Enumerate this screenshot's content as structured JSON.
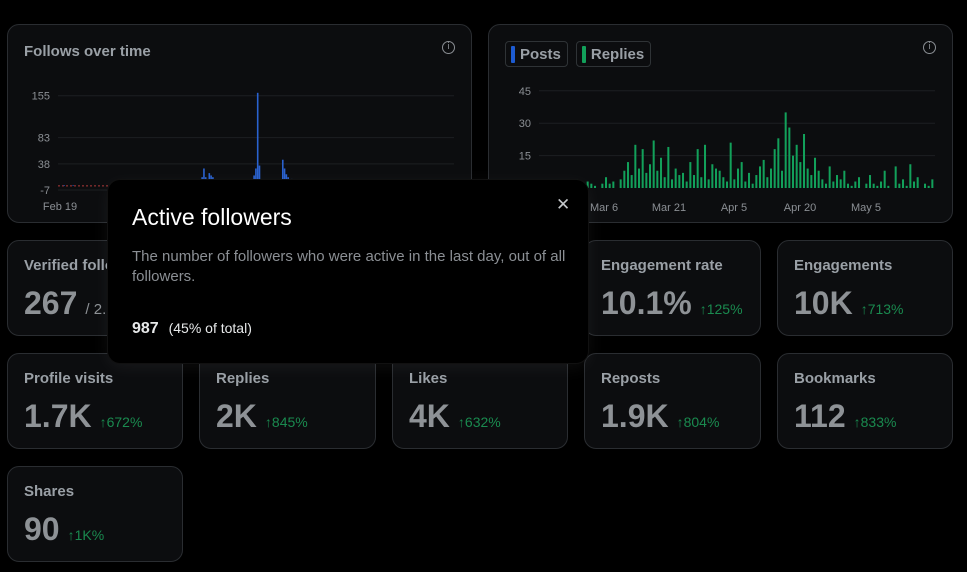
{
  "follows_chart": {
    "title": "Follows over time",
    "info_icon": "info-icon",
    "y_ticks": [
      "155",
      "83",
      "38",
      "-7"
    ],
    "x_ticks": [
      "Feb 19"
    ]
  },
  "activity_chart": {
    "legend": [
      {
        "label": "Posts",
        "color": "#1d5bd1"
      },
      {
        "label": "Replies",
        "color": "#12a05a"
      }
    ],
    "info_icon": "info-icon",
    "y_ticks": [
      "45",
      "30",
      "15"
    ],
    "x_ticks": [
      "Mar 6",
      "Mar 21",
      "Apr 5",
      "Apr 20",
      "May 5"
    ]
  },
  "chart_data": [
    {
      "type": "bar",
      "title": "Follows over time",
      "ylim": [
        -7,
        170
      ],
      "series": [
        {
          "values": [
            0,
            0,
            0,
            1,
            0,
            0,
            0,
            0,
            1,
            0,
            0,
            0,
            0,
            0,
            0,
            0,
            0,
            0,
            0,
            0,
            0,
            0,
            0,
            0,
            0,
            0,
            0,
            0,
            0,
            0,
            0,
            0,
            0,
            0,
            0,
            0,
            0,
            0,
            0,
            0,
            0,
            0,
            0,
            0,
            0,
            0,
            0,
            0,
            0,
            0,
            0,
            0,
            0,
            0,
            0,
            0,
            0,
            0,
            0,
            0,
            0,
            0,
            0,
            0,
            0,
            0,
            0,
            0,
            0,
            0,
            0,
            0,
            0,
            0,
            0,
            0,
            0,
            0,
            0,
            5,
            15,
            30,
            15,
            12,
            22,
            18,
            15,
            10,
            5,
            0,
            0,
            0,
            0,
            0,
            0,
            0,
            0,
            0,
            0,
            0,
            0,
            2,
            8,
            3,
            0,
            0,
            0,
            0,
            0,
            18,
            30,
            160,
            35,
            5,
            0,
            0,
            0,
            0,
            0,
            0,
            0,
            0,
            0,
            0,
            0,
            45,
            30,
            20,
            15,
            8,
            12,
            5,
            0,
            0,
            0,
            0,
            0,
            0,
            0,
            0,
            5,
            0,
            0,
            0,
            0,
            0,
            0,
            0,
            0,
            0,
            0,
            0,
            0,
            0,
            0,
            0,
            0,
            0,
            0,
            0,
            0,
            0,
            0,
            0,
            0,
            0,
            0,
            0,
            0,
            0,
            0,
            0,
            5,
            3,
            0,
            0,
            0,
            0,
            0,
            0,
            0,
            0,
            0,
            0,
            0,
            0,
            0,
            0,
            0,
            0,
            0,
            0,
            0,
            0,
            0,
            0,
            0,
            0,
            0,
            0,
            0,
            0,
            0,
            0,
            0,
            0,
            0,
            0,
            0,
            0,
            0,
            0,
            0,
            0,
            0,
            0,
            0,
            0,
            0,
            0,
            0
          ]
        }
      ]
    },
    {
      "type": "bar",
      "ylim": [
        0,
        50
      ],
      "series": [
        {
          "name": "Posts",
          "values": [
            1,
            0,
            0,
            0,
            1,
            0,
            0,
            0,
            0,
            1,
            0,
            0,
            0,
            0,
            0,
            0,
            0,
            0,
            0,
            0,
            0,
            0,
            0,
            0,
            0,
            0,
            0,
            0,
            0,
            0,
            0,
            0,
            0,
            0,
            0,
            0,
            0,
            0,
            0,
            0,
            0,
            0,
            0,
            0,
            0,
            0,
            0,
            0,
            0,
            0,
            0,
            0,
            0,
            0,
            0,
            0,
            0,
            0,
            0,
            0,
            0,
            0,
            0,
            0,
            0,
            0,
            0,
            0,
            0,
            0,
            0,
            0,
            0,
            0,
            0,
            0,
            0,
            0,
            0,
            0,
            0,
            0,
            0,
            0,
            0,
            0,
            0,
            0,
            0,
            0,
            0,
            0,
            0,
            0,
            0,
            0,
            0,
            0,
            0,
            0,
            0,
            0,
            0,
            0,
            0,
            0,
            0,
            0,
            0,
            0,
            0,
            0,
            0,
            0,
            0,
            0,
            0,
            0,
            0,
            0,
            0
          ]
        },
        {
          "name": "Replies",
          "values": [
            0,
            1,
            0,
            2,
            1,
            0,
            3,
            1,
            0,
            2,
            4,
            1,
            0,
            3,
            2,
            1,
            0,
            2,
            5,
            2,
            3,
            0,
            4,
            8,
            12,
            6,
            20,
            9,
            18,
            7,
            11,
            22,
            8,
            14,
            5,
            19,
            4,
            9,
            6,
            7,
            3,
            12,
            6,
            18,
            5,
            20,
            4,
            11,
            9,
            8,
            5,
            3,
            21,
            4,
            9,
            12,
            3,
            7,
            2,
            6,
            10,
            13,
            5,
            9,
            18,
            23,
            8,
            35,
            28,
            15,
            20,
            12,
            25,
            9,
            6,
            14,
            8,
            4,
            2,
            10,
            3,
            6,
            4,
            8,
            2,
            1,
            3,
            5,
            0,
            2,
            6,
            2,
            1,
            3,
            8,
            1,
            0,
            10,
            2,
            4,
            1,
            11,
            3,
            5,
            0,
            2,
            1,
            4
          ]
        }
      ]
    }
  ],
  "stats": [
    {
      "label": "Verified followers",
      "value": "267",
      "sub": "/ 2.",
      "change": ""
    },
    {
      "label": "Engagement rate",
      "value": "10.1%",
      "sub": "",
      "change": "↑125%"
    },
    {
      "label": "Engagements",
      "value": "10K",
      "sub": "",
      "change": "↑713%"
    },
    {
      "label": "Profile visits",
      "value": "1.7K",
      "sub": "",
      "change": "↑672%"
    },
    {
      "label": "Replies",
      "value": "2K",
      "sub": "",
      "change": "↑845%"
    },
    {
      "label": "Likes",
      "value": "4K",
      "sub": "",
      "change": "↑632%"
    },
    {
      "label": "Reposts",
      "value": "1.9K",
      "sub": "",
      "change": "↑804%"
    },
    {
      "label": "Bookmarks",
      "value": "112",
      "sub": "",
      "change": "↑833%"
    },
    {
      "label": "Shares",
      "value": "90",
      "sub": "",
      "change": "↑1K%"
    }
  ],
  "modal": {
    "title": "Active followers",
    "close_icon": "close-icon",
    "description": "The number of followers who were active in the last day, out of all followers.",
    "metric_value": "987",
    "metric_note": "(45% of total)"
  },
  "colors": {
    "posts": "#1d5bd1",
    "replies": "#12a05a",
    "follows_bar": "#2a62cf",
    "negative_line": "#b03a3a",
    "change_positive": "#1a8a4f"
  }
}
